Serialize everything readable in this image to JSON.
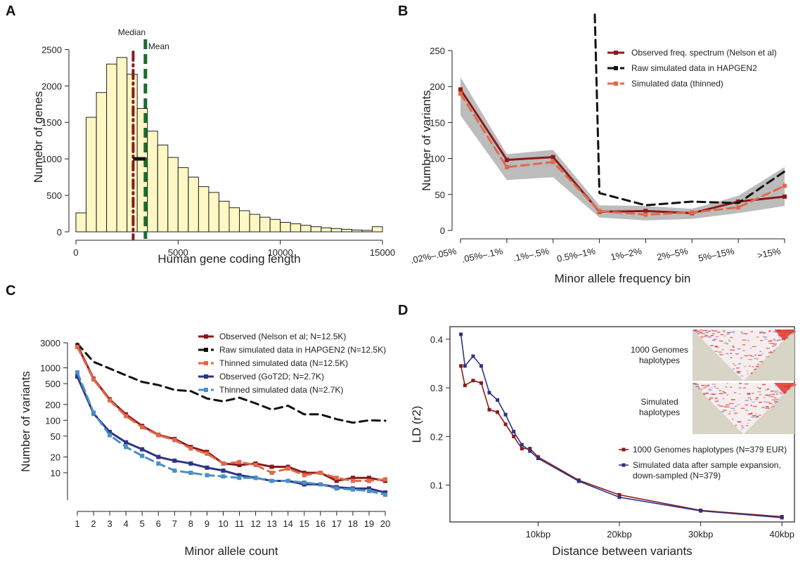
{
  "panels": [
    {
      "id": "A",
      "label": "A"
    },
    {
      "id": "B",
      "label": "B"
    },
    {
      "id": "C",
      "label": "C"
    },
    {
      "id": "D",
      "label": "D"
    }
  ],
  "chart_data": [
    {
      "panel": "A",
      "type": "bar",
      "xlabel": "Human gene coding length",
      "ylabel": "Numebr of genes",
      "x_ticks": [
        0,
        5000,
        10000,
        15000
      ],
      "y_ticks": [
        0,
        500,
        1000,
        1500,
        2000,
        2500
      ],
      "xlim": [
        0,
        15000
      ],
      "ylim": [
        0,
        2600
      ],
      "bin_width": 500,
      "bin_starts": [
        0,
        500,
        1000,
        1500,
        2000,
        2500,
        3000,
        3500,
        4000,
        4500,
        5000,
        5500,
        6000,
        6500,
        7000,
        7500,
        8000,
        8500,
        9000,
        9500,
        10000,
        10500,
        11000,
        11500,
        12000,
        12500,
        13000,
        13500,
        14000,
        14500
      ],
      "values": [
        260,
        1570,
        1910,
        2300,
        2390,
        2160,
        1690,
        1380,
        1190,
        1020,
        880,
        750,
        620,
        540,
        420,
        330,
        290,
        240,
        200,
        170,
        130,
        110,
        90,
        70,
        55,
        45,
        35,
        25,
        20,
        70
      ],
      "bar_color": "#fff8c4",
      "annotations": [
        {
          "label": "Median",
          "x": 2800,
          "color": "#8b1a1a"
        },
        {
          "label": "Mean",
          "x": 3400,
          "color": "#1a6b2e"
        }
      ],
      "interval_marker": {
        "x0": 2800,
        "x1": 3400,
        "y": 1000
      }
    },
    {
      "panel": "B",
      "type": "line",
      "xlabel": "Minor allele frequency bin",
      "ylabel": "Number of variants",
      "categories": [
        ".02%–.05%",
        ".05%–.1%",
        ".1%–.5%",
        "0.5%–1%",
        "1%–2%",
        "2%–5%",
        "5%–15%",
        ">15%"
      ],
      "y_ticks": [
        0,
        50,
        100,
        150,
        200,
        250
      ],
      "ylim": [
        0,
        250
      ],
      "band_upper": [
        213,
        106,
        112,
        35,
        34,
        30,
        48,
        88
      ],
      "band_lower": [
        160,
        70,
        74,
        18,
        14,
        16,
        24,
        34
      ],
      "band_color": "#b0b0b0",
      "legend_position": "top-right",
      "series": [
        {
          "name": "Observed freq. spectrum (Nelson et al)",
          "color": "#8b1a1a",
          "dash": "solid",
          "values": [
            196,
            98,
            102,
            26,
            27,
            24,
            40,
            47
          ]
        },
        {
          "name": "Raw simulated data in HAPGEN2",
          "color": "#111111",
          "dash": "dashed",
          "values": [
            null,
            null,
            null,
            52,
            35,
            40,
            38,
            82
          ],
          "offchart_start": {
            "from_category": 2.9,
            "to_value": 300
          }
        },
        {
          "name": "Simulated data (thinned)",
          "color": "#e0694a",
          "dash": "dashed",
          "values": [
            190,
            88,
            95,
            27,
            22,
            25,
            32,
            62
          ]
        }
      ]
    },
    {
      "panel": "C",
      "type": "line",
      "log_y": true,
      "xlabel": "Minor allele count",
      "ylabel": "Number of variants",
      "x": [
        1,
        2,
        3,
        4,
        5,
        6,
        7,
        8,
        9,
        10,
        11,
        12,
        13,
        14,
        15,
        16,
        17,
        18,
        19,
        20
      ],
      "y_ticks": [
        10,
        20,
        50,
        100,
        200,
        500,
        1000,
        3000
      ],
      "ylim": [
        3,
        3000
      ],
      "legend_position": "top-right",
      "series": [
        {
          "name": "Observed (Nelson et al; N=12.5K)",
          "color": "#8b1a1a",
          "dash": "solid",
          "values": [
            2700,
            620,
            250,
            130,
            78,
            53,
            44,
            31,
            25,
            15,
            14,
            15,
            13,
            13,
            10,
            10,
            7,
            8,
            8,
            7
          ]
        },
        {
          "name": "Raw simulated data in HAPGEN2 (N=12.5K)",
          "color": "#111111",
          "dash": "dashed",
          "values": [
            2900,
            1300,
            970,
            720,
            540,
            470,
            380,
            360,
            260,
            230,
            270,
            210,
            160,
            190,
            130,
            130,
            105,
            90,
            100,
            98
          ]
        },
        {
          "name": "Thinned simulated data (N=12.5K)",
          "color": "#e0694a",
          "dash": "dashed",
          "values": [
            2500,
            600,
            240,
            120,
            74,
            52,
            42,
            29,
            23,
            15,
            16,
            14,
            10,
            12,
            9,
            10,
            8,
            7,
            7,
            7.5
          ]
        },
        {
          "name": "Observed (GoT2D; N=2.7K)",
          "color": "#2e3386",
          "dash": "solid",
          "values": [
            680,
            135,
            60,
            38,
            28,
            20,
            17,
            15,
            12.5,
            11,
            9,
            8,
            7,
            7,
            6,
            6,
            5.3,
            5,
            5,
            4.2
          ]
        },
        {
          "name": "Thinned simulated data (N=2.7K)",
          "color": "#4a90c4",
          "dash": "dashed",
          "values": [
            820,
            140,
            52,
            31,
            21,
            15,
            11,
            10,
            9,
            8.5,
            8,
            8,
            7,
            7,
            6.5,
            6,
            5,
            4.8,
            4.5,
            3.8
          ]
        }
      ]
    },
    {
      "panel": "D",
      "type": "line",
      "xlabel": "Distance between variants",
      "ylabel": "LD (r2)",
      "x_ticks": [
        10,
        20,
        30,
        40
      ],
      "x_tick_labels": [
        "10kbp",
        "20kbp",
        "30kbp",
        "40kbp"
      ],
      "xlim": [
        -0.5,
        40.5
      ],
      "ylim": [
        0.03,
        0.42
      ],
      "y_ticks": [
        0.1,
        0.2,
        0.3,
        0.4
      ],
      "legend_position": "bottom-right",
      "series": [
        {
          "name": "1000 Genomes haplotypes (N=379 EUR)",
          "color": "#8b1a1a",
          "x": [
            0.5,
            1,
            2,
            3,
            4,
            5,
            6,
            7,
            8,
            9,
            10,
            15,
            20,
            30,
            40
          ],
          "values": [
            0.345,
            0.305,
            0.315,
            0.31,
            0.255,
            0.25,
            0.225,
            0.2,
            0.175,
            0.175,
            0.158,
            0.11,
            0.08,
            0.048,
            0.035
          ]
        },
        {
          "name": "Simulated data after sample expansion, down-sampled (N=379)",
          "color": "#2e3386",
          "x": [
            0.5,
            1,
            2,
            3,
            4,
            5,
            6,
            7,
            8,
            9,
            10,
            15,
            20,
            30,
            40
          ],
          "values": [
            0.41,
            0.345,
            0.365,
            0.345,
            0.29,
            0.275,
            0.245,
            0.21,
            0.183,
            0.17,
            0.155,
            0.108,
            0.075,
            0.047,
            0.033
          ]
        }
      ],
      "inset_labels": {
        "top": "1000 Genomes\nhaplotypes",
        "bottom": "Simulated\nhaplotypes"
      }
    }
  ]
}
